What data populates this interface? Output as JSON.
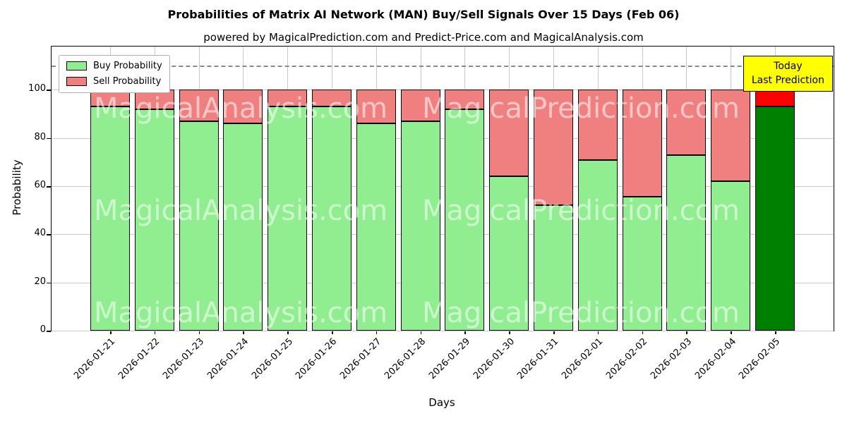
{
  "chart_data": {
    "type": "bar",
    "stacked": true,
    "title": "Probabilities of Matrix AI Network (MAN) Buy/Sell Signals Over 15 Days (Feb 06)",
    "subtitle": "powered by MagicalPrediction.com and Predict-Price.com and MagicalAnalysis.com",
    "xlabel": "Days",
    "ylabel": "Probability",
    "categories": [
      "2026-01-21",
      "2026-01-22",
      "2026-01-23",
      "2026-01-24",
      "2026-01-25",
      "2026-01-26",
      "2026-01-27",
      "2026-01-28",
      "2026-01-29",
      "2026-01-30",
      "2026-01-31",
      "2026-02-01",
      "2026-02-02",
      "2026-02-03",
      "2026-02-04",
      "2026-02-05"
    ],
    "series": [
      {
        "name": "Buy Probability",
        "color": "#90EE90",
        "values": [
          93,
          92,
          87,
          86,
          93,
          93,
          86,
          87,
          92,
          64,
          52,
          71,
          55.5,
          73,
          62,
          93
        ]
      },
      {
        "name": "Sell Probability",
        "color": "#F08080",
        "values": [
          7,
          8,
          13,
          14,
          7,
          7,
          14,
          13,
          8,
          36,
          48,
          29,
          44.5,
          27,
          38,
          7
        ]
      }
    ],
    "last_bar_colors": {
      "buy": "#008000",
      "sell": "#FF0000"
    },
    "yticks": [
      0,
      20,
      40,
      60,
      80,
      100
    ],
    "ylim": [
      0,
      118
    ],
    "dashed_line_y": 110,
    "grid": true,
    "legend_position": "upper-left",
    "annotation": {
      "line1": "Today",
      "line2": "Last Prediction",
      "bg_color": "#FFFF00"
    },
    "watermarks": {
      "left": "MagicalAnalysis.com",
      "right": "MagicalPrediction.com"
    }
  }
}
